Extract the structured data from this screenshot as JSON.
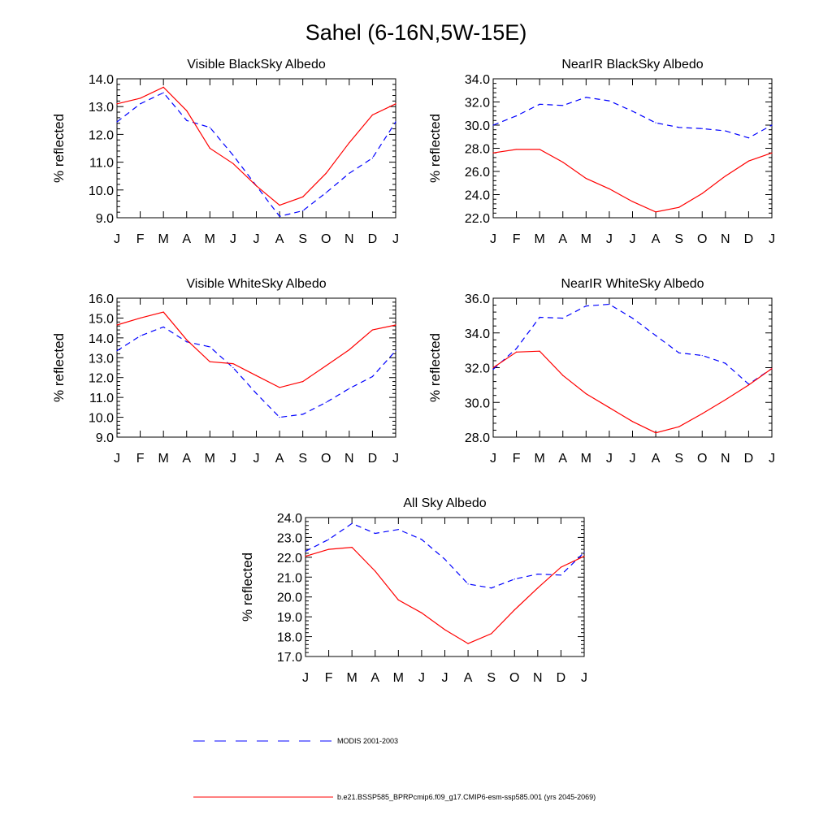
{
  "title": "Sahel (6-16N,5W-15E)",
  "chart_data": [
    {
      "type": "line",
      "title": "Visible BlackSky Albedo",
      "ylabel": "% reflected",
      "ylim": [
        9.0,
        14.0
      ],
      "yticks": [
        "9.0",
        "10.0",
        "11.0",
        "12.0",
        "13.0",
        "14.0"
      ],
      "categories": [
        "J",
        "F",
        "M",
        "A",
        "M",
        "J",
        "J",
        "A",
        "S",
        "O",
        "N",
        "D",
        "J"
      ],
      "series": [
        {
          "name": "MODIS 2001-2003",
          "color": "#0000ff",
          "dash": true,
          "values": [
            12.45,
            13.1,
            13.5,
            12.5,
            12.25,
            11.25,
            10.15,
            9.05,
            9.25,
            9.9,
            10.6,
            11.15,
            12.45
          ]
        },
        {
          "name": "b.e21.BSSP585_BPRPcmip6.f09_g17.CMIP6-esm-ssp585.001 (yrs 2045-2069)",
          "color": "#ff0000",
          "dash": false,
          "values": [
            13.1,
            13.3,
            13.7,
            12.85,
            11.5,
            10.95,
            10.15,
            9.45,
            9.75,
            10.6,
            11.7,
            12.7,
            13.1
          ]
        }
      ]
    },
    {
      "type": "line",
      "title": "NearIR BlackSky Albedo",
      "ylabel": "% reflected",
      "ylim": [
        22.0,
        34.0
      ],
      "yticks": [
        "22.0",
        "24.0",
        "26.0",
        "28.0",
        "30.0",
        "32.0",
        "34.0"
      ],
      "categories": [
        "J",
        "F",
        "M",
        "A",
        "M",
        "J",
        "J",
        "A",
        "S",
        "O",
        "N",
        "D",
        "J"
      ],
      "series": [
        {
          "name": "MODIS 2001-2003",
          "color": "#0000ff",
          "dash": true,
          "values": [
            30.0,
            30.8,
            31.8,
            31.7,
            32.4,
            32.1,
            31.2,
            30.2,
            29.8,
            29.7,
            29.5,
            28.9,
            30.0
          ]
        },
        {
          "name": "b.e21.BSSP585_BPRPcmip6.f09_g17.CMIP6-esm-ssp585.001 (yrs 2045-2069)",
          "color": "#ff0000",
          "dash": false,
          "values": [
            27.6,
            27.9,
            27.9,
            26.8,
            25.4,
            24.5,
            23.4,
            22.5,
            22.9,
            24.1,
            25.6,
            26.9,
            27.6
          ]
        }
      ]
    },
    {
      "type": "line",
      "title": "Visible WhiteSky Albedo",
      "ylabel": "% reflected",
      "ylim": [
        9.0,
        16.0
      ],
      "yticks": [
        "9.0",
        "10.0",
        "11.0",
        "12.0",
        "13.0",
        "14.0",
        "15.0",
        "16.0"
      ],
      "categories": [
        "J",
        "F",
        "M",
        "A",
        "M",
        "J",
        "J",
        "A",
        "S",
        "O",
        "N",
        "D",
        "J"
      ],
      "series": [
        {
          "name": "MODIS 2001-2003",
          "color": "#0000ff",
          "dash": true,
          "values": [
            13.35,
            14.1,
            14.55,
            13.8,
            13.55,
            12.5,
            11.2,
            10.0,
            10.15,
            10.75,
            11.45,
            12.05,
            13.35
          ]
        },
        {
          "name": "b.e21.BSSP585_BPRPcmip6.f09_g17.CMIP6-esm-ssp585.001 (yrs 2045-2069)",
          "color": "#ff0000",
          "dash": false,
          "values": [
            14.65,
            15.0,
            15.3,
            13.9,
            12.8,
            12.7,
            12.1,
            11.5,
            11.8,
            12.6,
            13.4,
            14.4,
            14.65
          ]
        }
      ]
    },
    {
      "type": "line",
      "title": "NearIR WhiteSky Albedo",
      "ylabel": "% reflected",
      "ylim": [
        28.0,
        36.0
      ],
      "yticks": [
        "28.0",
        "30.0",
        "32.0",
        "34.0",
        "36.0"
      ],
      "categories": [
        "J",
        "F",
        "M",
        "A",
        "M",
        "J",
        "J",
        "A",
        "S",
        "O",
        "N",
        "D",
        "J"
      ],
      "series": [
        {
          "name": "MODIS 2001-2003",
          "color": "#0000ff",
          "dash": true,
          "values": [
            31.9,
            33.1,
            34.9,
            34.85,
            35.55,
            35.65,
            34.85,
            33.85,
            32.85,
            32.7,
            32.25,
            31.05,
            31.95
          ]
        },
        {
          "name": "b.e21.BSSP585_BPRPcmip6.f09_g17.CMIP6-esm-ssp585.001 (yrs 2045-2069)",
          "color": "#ff0000",
          "dash": false,
          "values": [
            32.0,
            32.9,
            32.95,
            31.55,
            30.5,
            29.7,
            28.9,
            28.25,
            28.6,
            29.35,
            30.15,
            31.0,
            31.95
          ]
        }
      ]
    },
    {
      "type": "line",
      "title": "All Sky Albedo",
      "ylabel": "% reflected",
      "ylim": [
        17.0,
        24.0
      ],
      "yticks": [
        "17.0",
        "18.0",
        "19.0",
        "20.0",
        "21.0",
        "22.0",
        "23.0",
        "24.0"
      ],
      "categories": [
        "J",
        "F",
        "M",
        "A",
        "M",
        "J",
        "J",
        "A",
        "S",
        "O",
        "N",
        "D",
        "J"
      ],
      "series": [
        {
          "name": "MODIS 2001-2003",
          "color": "#0000ff",
          "dash": true,
          "values": [
            22.3,
            22.9,
            23.7,
            23.2,
            23.4,
            22.9,
            21.9,
            20.65,
            20.45,
            20.9,
            21.15,
            21.1,
            22.25
          ]
        },
        {
          "name": "b.e21.BSSP585_BPRPcmip6.f09_g17.CMIP6-esm-ssp585.001 (yrs 2045-2069)",
          "color": "#ff0000",
          "dash": false,
          "values": [
            22.05,
            22.4,
            22.5,
            21.3,
            19.85,
            19.2,
            18.35,
            17.65,
            18.15,
            19.35,
            20.45,
            21.5,
            22.05
          ]
        }
      ]
    }
  ],
  "legend": [
    {
      "label": "MODIS 2001-2003",
      "color": "#0000ff",
      "dash": true
    },
    {
      "label": "b.e21.BSSP585_BPRPcmip6.f09_g17.CMIP6-esm-ssp585.001 (yrs 2045-2069)",
      "color": "#ff0000",
      "dash": false
    }
  ]
}
